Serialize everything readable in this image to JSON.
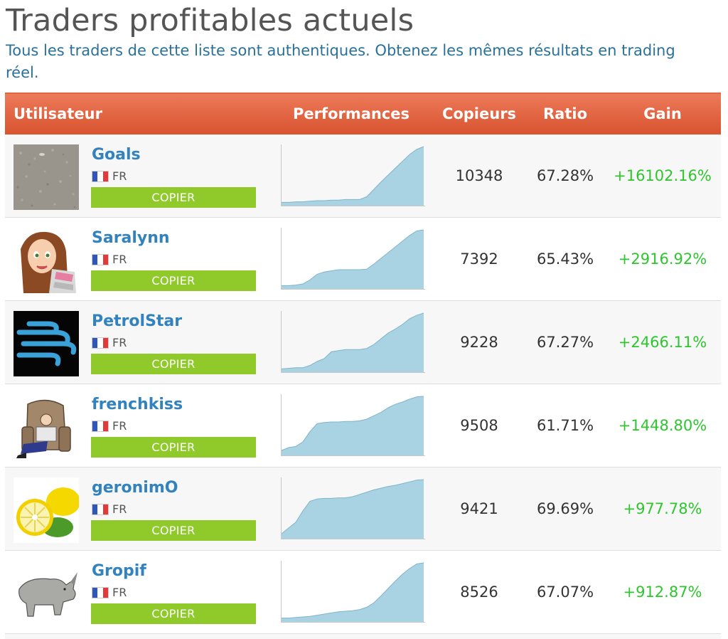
{
  "page": {
    "title": "Traders profitables actuels",
    "subtitle": "Tous les traders de cette liste sont authentiques. Obtenez les mêmes résultats en trading réel."
  },
  "table": {
    "headers": {
      "user": "Utilisateur",
      "performance": "Performances",
      "copiers": "Copieurs",
      "ratio": "Ratio",
      "gain": "Gain"
    },
    "colors": {
      "header_gradient_top": "#ec7a5a",
      "header_gradient_bottom": "#d9532f",
      "copy_button": "#8fc92a",
      "gain_positive": "#2ec52e",
      "username": "#3182bd",
      "sparkline_fill": "#a9d3e3"
    },
    "rows": [
      {
        "avatar_icon": "gravel-texture-avatar",
        "username": "Goals",
        "country": "FR",
        "copy_label": "COPIER",
        "copiers": "10348",
        "ratio": "67.28%",
        "gain": "+16102.16%",
        "performance": [
          0.02,
          0.02,
          0.03,
          0.03,
          0.04,
          0.05,
          0.05,
          0.06,
          0.06,
          0.07,
          0.07,
          0.07,
          0.12,
          0.25,
          0.38,
          0.5,
          0.62,
          0.74,
          0.86,
          0.95,
          1.0
        ]
      },
      {
        "avatar_icon": "cartoon-girl-avatar",
        "username": "Saralynn",
        "country": "FR",
        "copy_label": "COPIER",
        "copiers": "7392",
        "ratio": "65.43%",
        "gain": "+2916.92%",
        "performance": [
          0.02,
          0.02,
          0.03,
          0.05,
          0.12,
          0.22,
          0.26,
          0.28,
          0.3,
          0.3,
          0.3,
          0.3,
          0.31,
          0.4,
          0.5,
          0.6,
          0.7,
          0.8,
          0.9,
          0.98,
          1.0
        ]
      },
      {
        "avatar_icon": "wind-logo-avatar",
        "username": "PetrolStar",
        "country": "FR",
        "copy_label": "COPIER",
        "copiers": "9228",
        "ratio": "67.27%",
        "gain": "+2466.11%",
        "performance": [
          0.02,
          0.03,
          0.04,
          0.04,
          0.08,
          0.15,
          0.2,
          0.32,
          0.34,
          0.36,
          0.36,
          0.36,
          0.38,
          0.45,
          0.55,
          0.65,
          0.72,
          0.8,
          0.9,
          0.96,
          1.0
        ]
      },
      {
        "avatar_icon": "sleeping-man-armchair-avatar",
        "username": "frenchkiss",
        "country": "FR",
        "copy_label": "COPIER",
        "copiers": "9508",
        "ratio": "61.71%",
        "gain": "+1448.80%",
        "performance": [
          0.05,
          0.1,
          0.12,
          0.2,
          0.38,
          0.52,
          0.54,
          0.55,
          0.55,
          0.56,
          0.56,
          0.57,
          0.6,
          0.66,
          0.72,
          0.8,
          0.86,
          0.9,
          0.95,
          0.99,
          1.0
        ]
      },
      {
        "avatar_icon": "lemons-avatar",
        "username": "geronimO",
        "country": "FR",
        "copy_label": "COPIER",
        "copiers": "9421",
        "ratio": "69.69%",
        "gain": "+977.78%",
        "performance": [
          0.05,
          0.15,
          0.25,
          0.45,
          0.62,
          0.66,
          0.67,
          0.67,
          0.68,
          0.68,
          0.7,
          0.74,
          0.78,
          0.82,
          0.85,
          0.88,
          0.9,
          0.93,
          0.96,
          0.99,
          1.0
        ]
      },
      {
        "avatar_icon": "rhinoceros-avatar",
        "username": "Gropif",
        "country": "FR",
        "copy_label": "COPIER",
        "copiers": "8526",
        "ratio": "67.07%",
        "gain": "+912.87%",
        "performance": [
          0.03,
          0.03,
          0.04,
          0.05,
          0.06,
          0.08,
          0.1,
          0.12,
          0.14,
          0.15,
          0.16,
          0.18,
          0.22,
          0.3,
          0.42,
          0.55,
          0.68,
          0.8,
          0.9,
          0.98,
          1.0
        ]
      }
    ]
  }
}
